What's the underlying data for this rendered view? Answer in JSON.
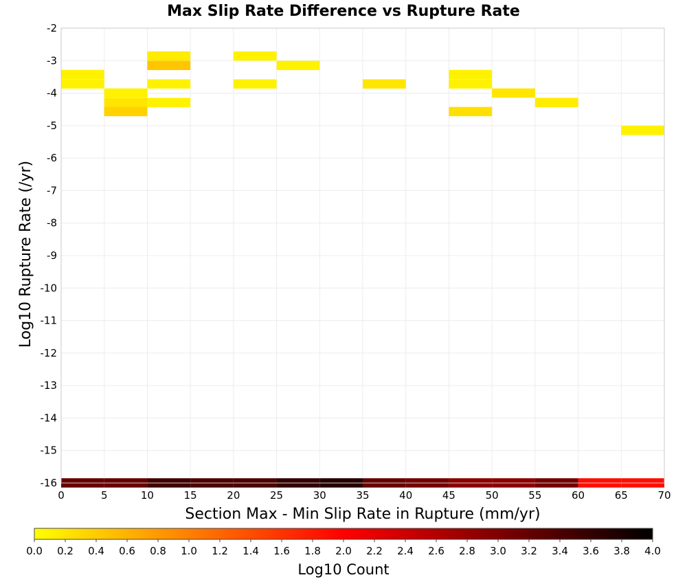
{
  "chart_data": {
    "type": "heatmap",
    "title": "Max Slip Rate Difference vs Rupture Rate",
    "xlabel": "Section Max - Min Slip Rate in Rupture (mm/yr)",
    "ylabel": "Log10 Rupture Rate (/yr)",
    "xlim": [
      0,
      70
    ],
    "ylim": [
      -16,
      -2
    ],
    "x_ticks": [
      0,
      5,
      10,
      15,
      20,
      25,
      30,
      35,
      40,
      45,
      50,
      55,
      60,
      65,
      70
    ],
    "y_ticks": [
      -2,
      -3,
      -4,
      -5,
      -6,
      -7,
      -8,
      -9,
      -10,
      -11,
      -12,
      -13,
      -14,
      -15,
      -16
    ],
    "grid": true,
    "x_bin_width": 5,
    "y_bin_height": 0.286,
    "colorbar": {
      "label": "Log10 Count",
      "range": [
        0,
        4
      ],
      "ticks": [
        "0.0",
        "0.2",
        "0.4",
        "0.6",
        "0.8",
        "1.0",
        "1.2",
        "1.4",
        "1.6",
        "1.8",
        "2.0",
        "2.2",
        "2.4",
        "2.6",
        "2.8",
        "3.0",
        "3.2",
        "3.4",
        "3.6",
        "3.8",
        "4.0"
      ],
      "colors": [
        "#ffff00",
        "#ff0000",
        "#000000"
      ]
    },
    "cells": [
      {
        "x": 0,
        "y": -3.86,
        "v": 0.1
      },
      {
        "x": 0,
        "y": -3.57,
        "v": 0.1
      },
      {
        "x": 5,
        "y": -4.14,
        "v": 0.1
      },
      {
        "x": 5,
        "y": -4.43,
        "v": 0.2
      },
      {
        "x": 5,
        "y": -4.71,
        "v": 0.35
      },
      {
        "x": 10,
        "y": -3.0,
        "v": 0.15
      },
      {
        "x": 10,
        "y": -3.29,
        "v": 0.45
      },
      {
        "x": 10,
        "y": -3.86,
        "v": 0.1
      },
      {
        "x": 10,
        "y": -4.43,
        "v": 0.1
      },
      {
        "x": 20,
        "y": -3.0,
        "v": 0.1
      },
      {
        "x": 20,
        "y": -3.86,
        "v": 0.1
      },
      {
        "x": 25,
        "y": -3.29,
        "v": 0.1
      },
      {
        "x": 35,
        "y": -3.86,
        "v": 0.2
      },
      {
        "x": 45,
        "y": -3.57,
        "v": 0.1
      },
      {
        "x": 45,
        "y": -3.86,
        "v": 0.1
      },
      {
        "x": 45,
        "y": -4.71,
        "v": 0.25
      },
      {
        "x": 50,
        "y": -4.14,
        "v": 0.2
      },
      {
        "x": 55,
        "y": -4.43,
        "v": 0.15
      },
      {
        "x": 65,
        "y": -5.29,
        "v": 0.1
      },
      {
        "x": 0,
        "y": -16.14,
        "v": 3.2
      },
      {
        "x": 5,
        "y": -16.14,
        "v": 3.2
      },
      {
        "x": 10,
        "y": -16.14,
        "v": 3.5
      },
      {
        "x": 15,
        "y": -16.14,
        "v": 3.4
      },
      {
        "x": 20,
        "y": -16.14,
        "v": 3.4
      },
      {
        "x": 25,
        "y": -16.14,
        "v": 3.6
      },
      {
        "x": 30,
        "y": -16.14,
        "v": 3.7
      },
      {
        "x": 35,
        "y": -16.14,
        "v": 3.2
      },
      {
        "x": 40,
        "y": -16.14,
        "v": 3.1
      },
      {
        "x": 45,
        "y": -16.14,
        "v": 2.9
      },
      {
        "x": 50,
        "y": -16.14,
        "v": 2.9
      },
      {
        "x": 55,
        "y": -16.14,
        "v": 3.1
      },
      {
        "x": 60,
        "y": -16.14,
        "v": 1.9
      },
      {
        "x": 65,
        "y": -16.14,
        "v": 1.9
      }
    ]
  }
}
